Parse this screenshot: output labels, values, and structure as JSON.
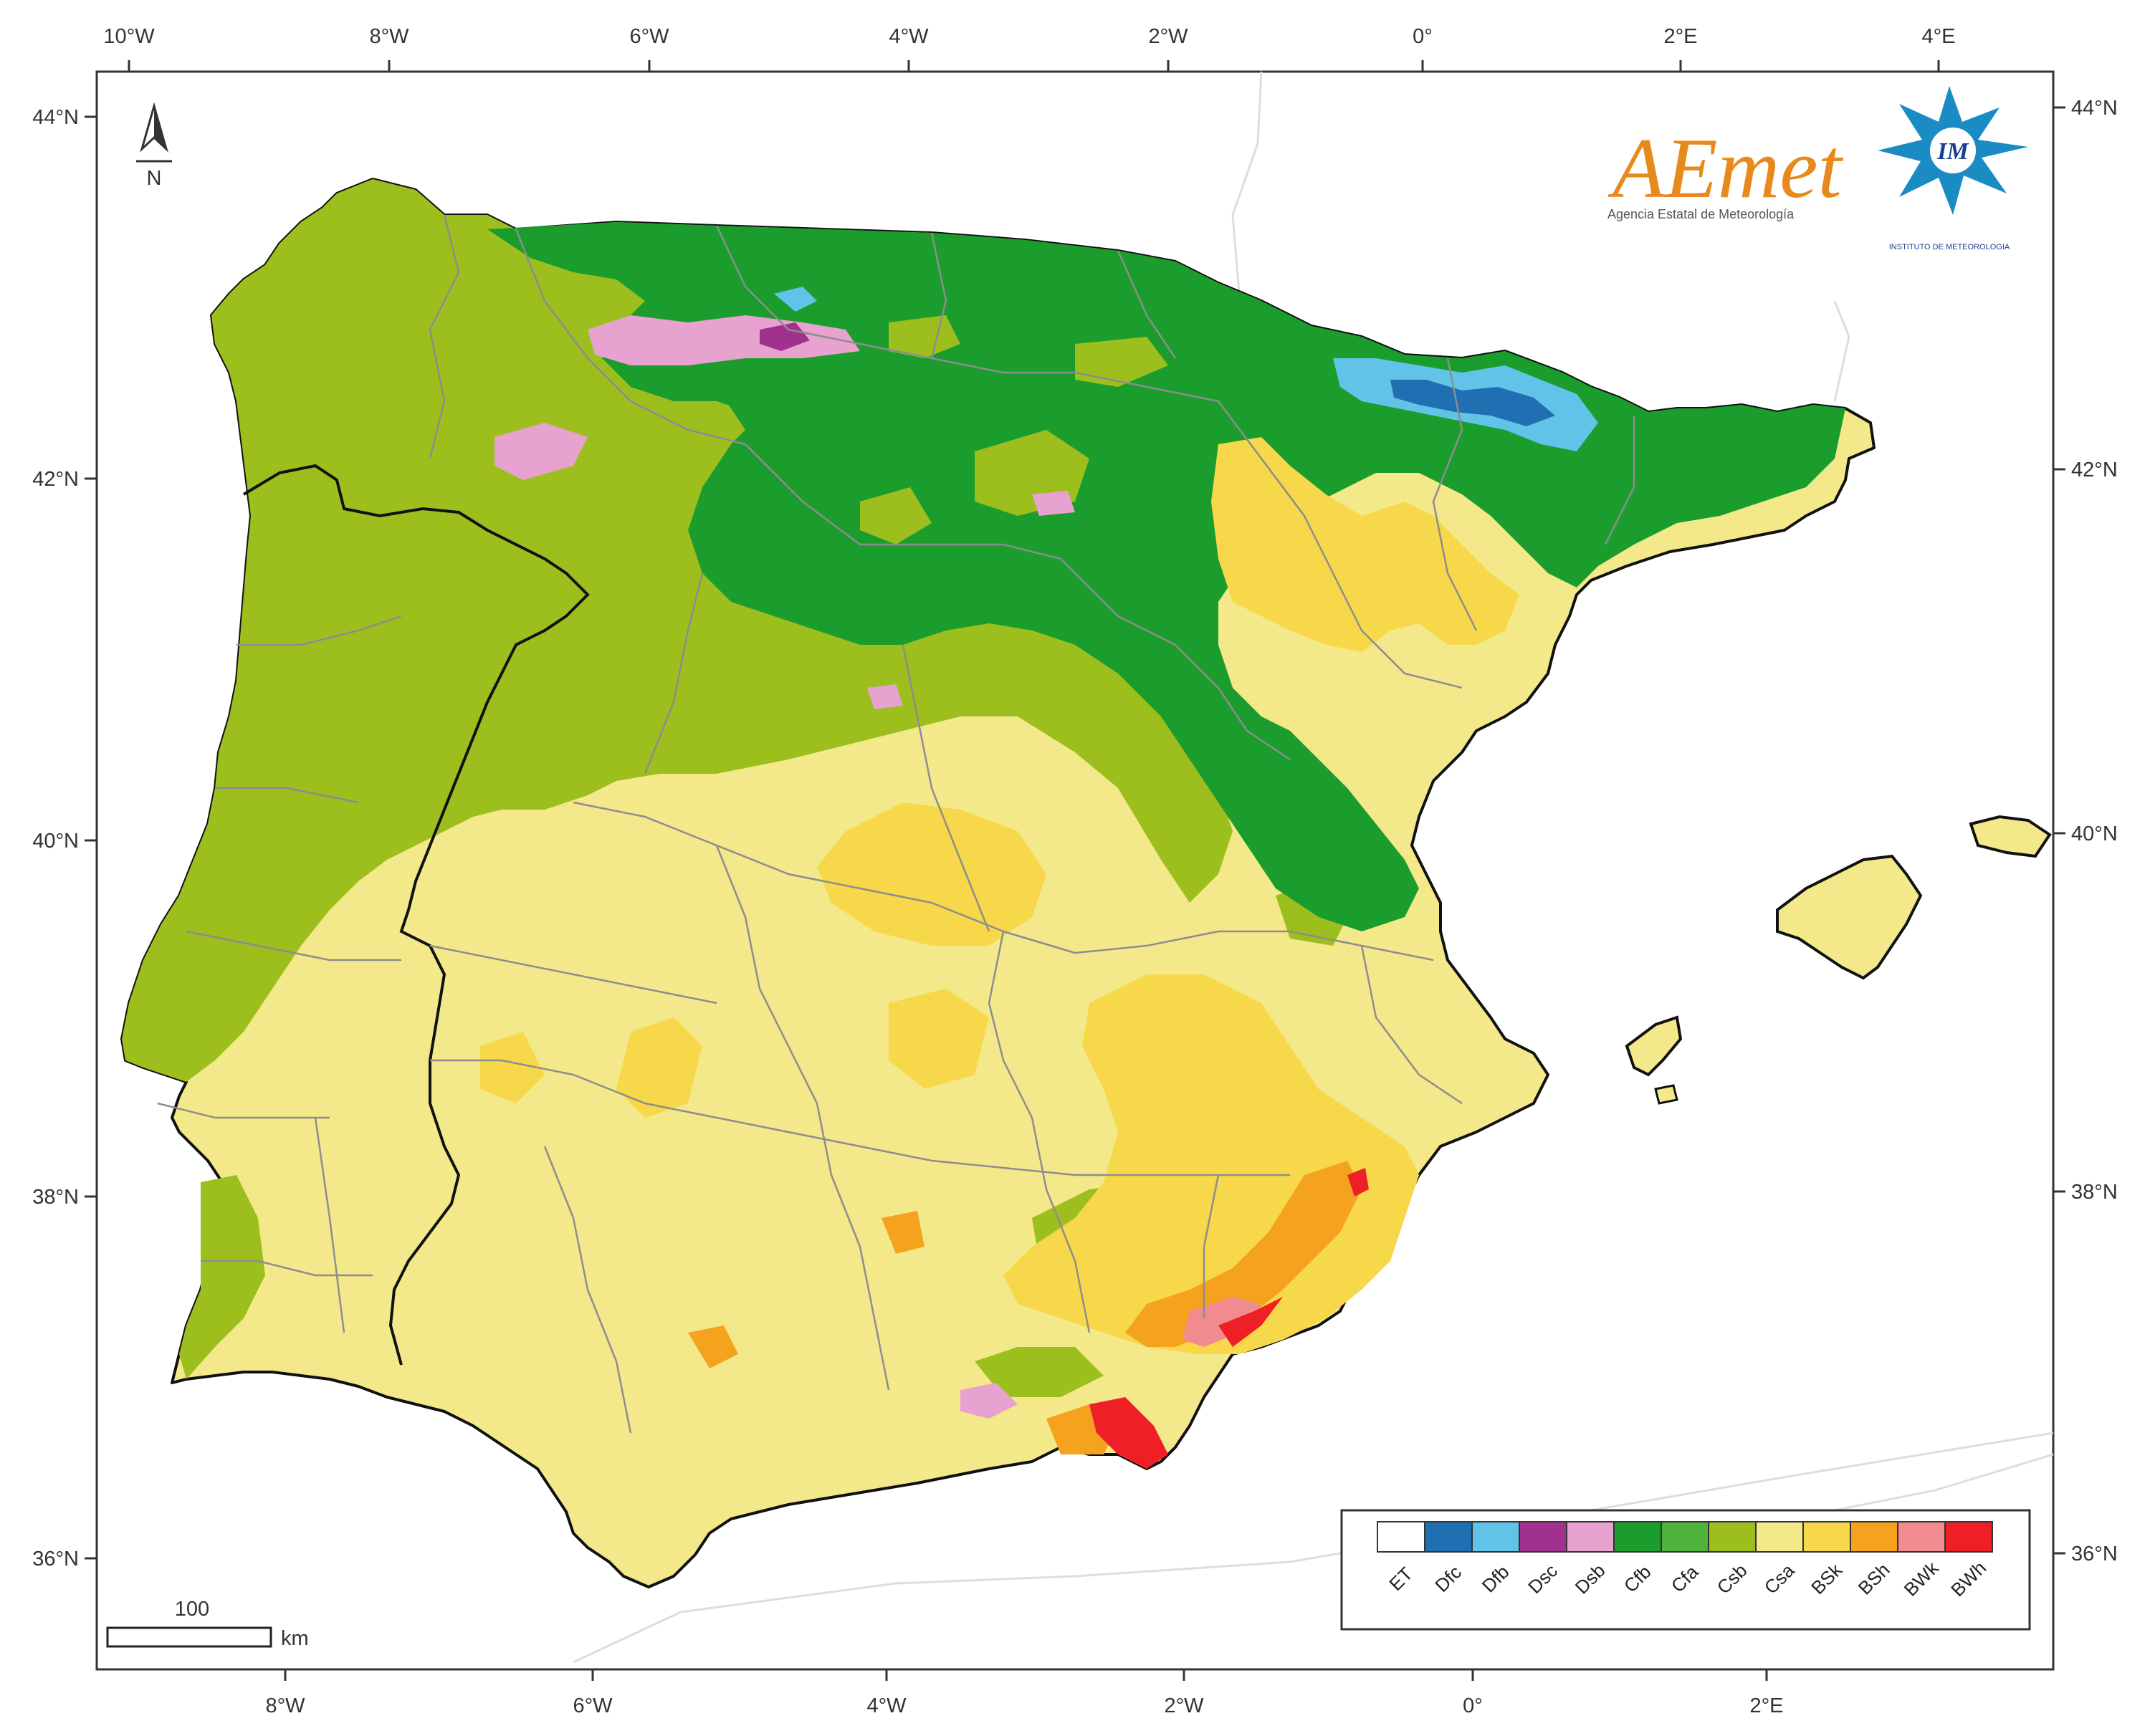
{
  "map": {
    "top_ticks": [
      "10°W",
      "8°W",
      "6°W",
      "4°W",
      "2°W",
      "0°",
      "2°E",
      "4°E"
    ],
    "bottom_ticks": [
      "8°W",
      "6°W",
      "4°W",
      "2°W",
      "0°",
      "2°E"
    ],
    "left_ticks": [
      "44°N",
      "42°N",
      "40°N",
      "38°N",
      "36°N"
    ],
    "right_ticks": [
      "44°N",
      "42°N",
      "40°N",
      "38°N",
      "36°N"
    ],
    "north_label": "N",
    "scale": {
      "value": "100",
      "unit": "km"
    }
  },
  "logos": {
    "aemet": {
      "word": "AEmet",
      "subtitle": "Agencia Estatal de Meteorología"
    },
    "im": {
      "initials": "IM",
      "subtitle": "INSTITUTO DE METEOROLOGIA"
    }
  },
  "legend": {
    "items": [
      {
        "code": "ET",
        "color": "#ffffff"
      },
      {
        "code": "Dfc",
        "color": "#1f6fb2"
      },
      {
        "code": "Dfb",
        "color": "#62c3e8"
      },
      {
        "code": "Dsc",
        "color": "#a0318f"
      },
      {
        "code": "Dsb",
        "color": "#e7a2cf"
      },
      {
        "code": "Cfb",
        "color": "#1a9d2d"
      },
      {
        "code": "Cfa",
        "color": "#4fb23a"
      },
      {
        "code": "Csb",
        "color": "#9dbf1e"
      },
      {
        "code": "Csa",
        "color": "#f3e98a"
      },
      {
        "code": "BSk",
        "color": "#f7d84a"
      },
      {
        "code": "BSh",
        "color": "#f5a21e"
      },
      {
        "code": "BWk",
        "color": "#f28b8f"
      },
      {
        "code": "BWh",
        "color": "#ee2025"
      }
    ]
  }
}
